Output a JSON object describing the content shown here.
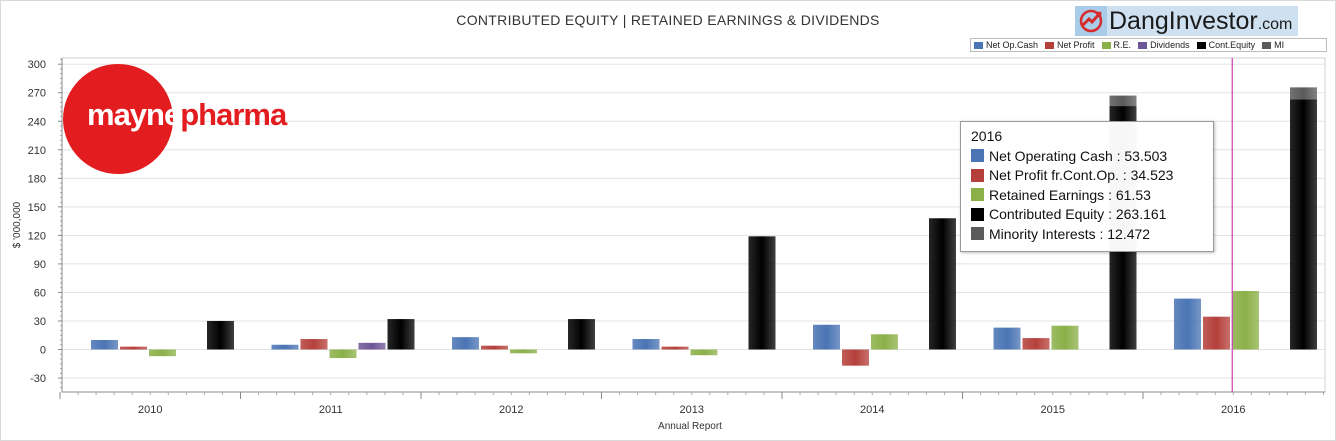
{
  "title": "CONTRIBUTED EQUITY | RETAINED EARNINGS & DIVIDENDS",
  "brand": {
    "name": "DangInvestor",
    "suffix": ".com"
  },
  "company_logo": {
    "part1": "mayne",
    "part2": "pharma"
  },
  "colors": {
    "net_op_cash": "#4a74b4",
    "net_profit": "#b5403b",
    "re": "#8bb048",
    "dividends": "#6e5596",
    "cont_equity": "#000000",
    "mi": "#5a5a5a",
    "highlight": "#cc3fb8"
  },
  "chart_data": {
    "type": "bar",
    "title": "CONTRIBUTED EQUITY | RETAINED EARNINGS & DIVIDENDS",
    "xlabel": "Annual Report",
    "ylabel": "$ '000,000",
    "ylim": [
      -40,
      305
    ],
    "yticks": [
      -30,
      0,
      30,
      60,
      90,
      120,
      150,
      180,
      210,
      240,
      270,
      300
    ],
    "categories": [
      "2010",
      "2011",
      "2012",
      "2013",
      "2014",
      "2015",
      "2016"
    ],
    "grid": true,
    "legend_position": "top-right",
    "highlighted_category": "2016",
    "series": [
      {
        "name": "Net Op.Cash",
        "key": "net_op_cash",
        "values": [
          10,
          5,
          13,
          11,
          26,
          23,
          53.503
        ]
      },
      {
        "name": "Net Profit",
        "key": "net_profit",
        "values": [
          3,
          11,
          4,
          3,
          -17,
          12,
          34.523
        ]
      },
      {
        "name": "R.E.",
        "key": "re",
        "values": [
          -7,
          -9,
          -4,
          -6,
          16,
          25,
          61.53
        ]
      },
      {
        "name": "Dividends",
        "key": "dividends",
        "values": [
          0,
          7,
          0,
          0,
          0,
          0,
          0
        ]
      },
      {
        "name": "Cont.Equity",
        "key": "cont_equity",
        "values": [
          30,
          32,
          32,
          119,
          138,
          256,
          263.161
        ],
        "stack": "equity"
      },
      {
        "name": "MI",
        "key": "mi",
        "values": [
          0,
          0,
          0,
          0,
          0,
          11,
          12.472
        ],
        "stack": "equity"
      }
    ]
  },
  "tooltip": {
    "title": "2016",
    "rows": [
      {
        "label": "Net Operating Cash : 53.503",
        "key": "net_op_cash"
      },
      {
        "label": "Net Profit fr.Cont.Op. : 34.523",
        "key": "net_profit"
      },
      {
        "label": "Retained Earnings : 61.53",
        "key": "re"
      },
      {
        "label": "Contributed Equity : 263.161",
        "key": "cont_equity"
      },
      {
        "label": "Minority Interests : 12.472",
        "key": "mi"
      }
    ]
  }
}
